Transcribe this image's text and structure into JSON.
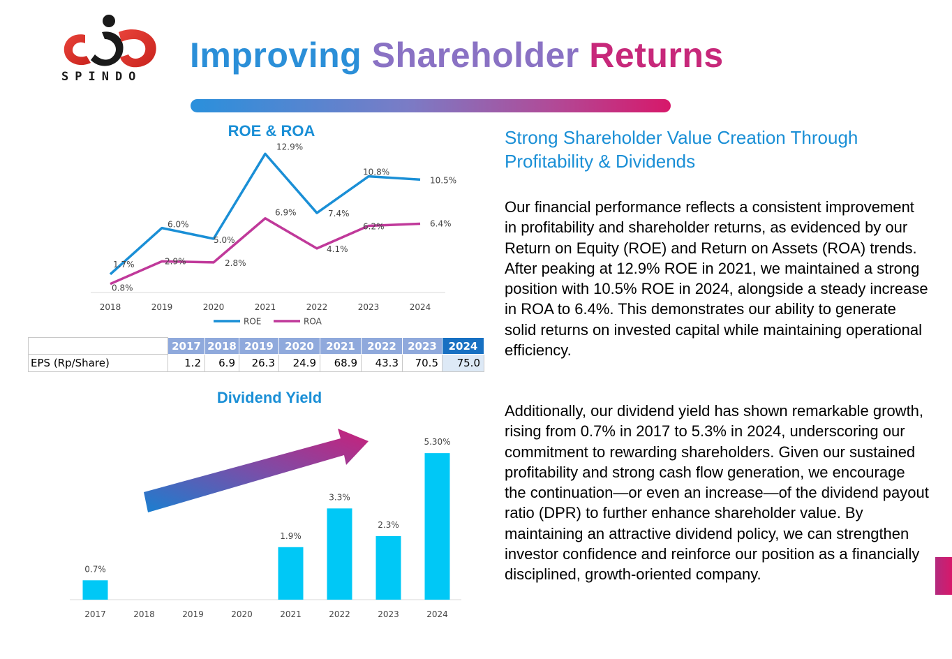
{
  "header": {
    "logo_text": "SPINDO",
    "title_part1": "Improving",
    "title_part2": "Shareholder",
    "title_part3": "Returns"
  },
  "colors": {
    "roe": "#1a8fd6",
    "roa": "#c0399a",
    "bar": "#00c8f6",
    "accent_pink": "#d7186a",
    "accent_blue": "#1a8fd6"
  },
  "chart_data": [
    {
      "type": "line",
      "title": "ROE & ROA",
      "x": [
        "2018",
        "2019",
        "2020",
        "2021",
        "2022",
        "2023",
        "2024"
      ],
      "series": [
        {
          "name": "ROE",
          "values": [
            1.7,
            6.0,
            5.0,
            12.9,
            7.4,
            10.8,
            10.5
          ],
          "labels": [
            "1.7%",
            "6.0%",
            "5.0%",
            "12.9%",
            "7.4%",
            "10.8%",
            "10.5%"
          ]
        },
        {
          "name": "ROA",
          "values": [
            0.8,
            2.9,
            2.8,
            6.9,
            4.1,
            6.2,
            6.4
          ],
          "labels": [
            "0.8%",
            "2.9%",
            "2.8%",
            "6.9%",
            "4.1%",
            "6.2%",
            "6.4%"
          ]
        }
      ],
      "legend": "bottom",
      "grid": false
    },
    {
      "type": "bar",
      "title": "Dividend Yield",
      "categories": [
        "2017",
        "2018",
        "2019",
        "2020",
        "2021",
        "2022",
        "2023",
        "2024"
      ],
      "values": [
        0.7,
        null,
        null,
        null,
        1.9,
        3.3,
        2.3,
        5.3
      ],
      "labels": [
        "0.7%",
        "",
        "",
        "",
        "1.9%",
        "3.3%",
        "2.3%",
        "5.30%"
      ],
      "grid": false
    }
  ],
  "eps_table": {
    "row_label": "EPS (Rp/Share)",
    "years": [
      "2017",
      "2018",
      "2019",
      "2020",
      "2021",
      "2022",
      "2023",
      "2024"
    ],
    "values": [
      "1.2",
      "6.9",
      "26.3",
      "24.9",
      "68.9",
      "43.3",
      "70.5",
      "75.0"
    ]
  },
  "text": {
    "heading": "Strong Shareholder Value Creation Through Profitability & Dividends",
    "para1": "Our financial performance reflects a consistent improvement in profitability and shareholder returns, as evidenced by our Return on Equity (ROE) and Return on Assets (ROA) trends. After peaking at 12.9% ROE in 2021, we maintained a strong position with 10.5% ROE in 2024, alongside a steady increase in ROA to 6.4%. This demonstrates our ability to generate solid returns on invested capital while maintaining operational efficiency.",
    "para2": "Additionally, our dividend yield has shown remarkable growth, rising from 0.7% in 2017 to 5.3% in 2024, underscoring our commitment to rewarding shareholders. Given our sustained profitability and strong cash flow generation, we encourage the continuation—or even an increase—of the dividend payout ratio (DPR) to further enhance shareholder value. By maintaining an attractive dividend policy, we can strengthen investor confidence and reinforce our position as a financially disciplined, growth-oriented company."
  }
}
